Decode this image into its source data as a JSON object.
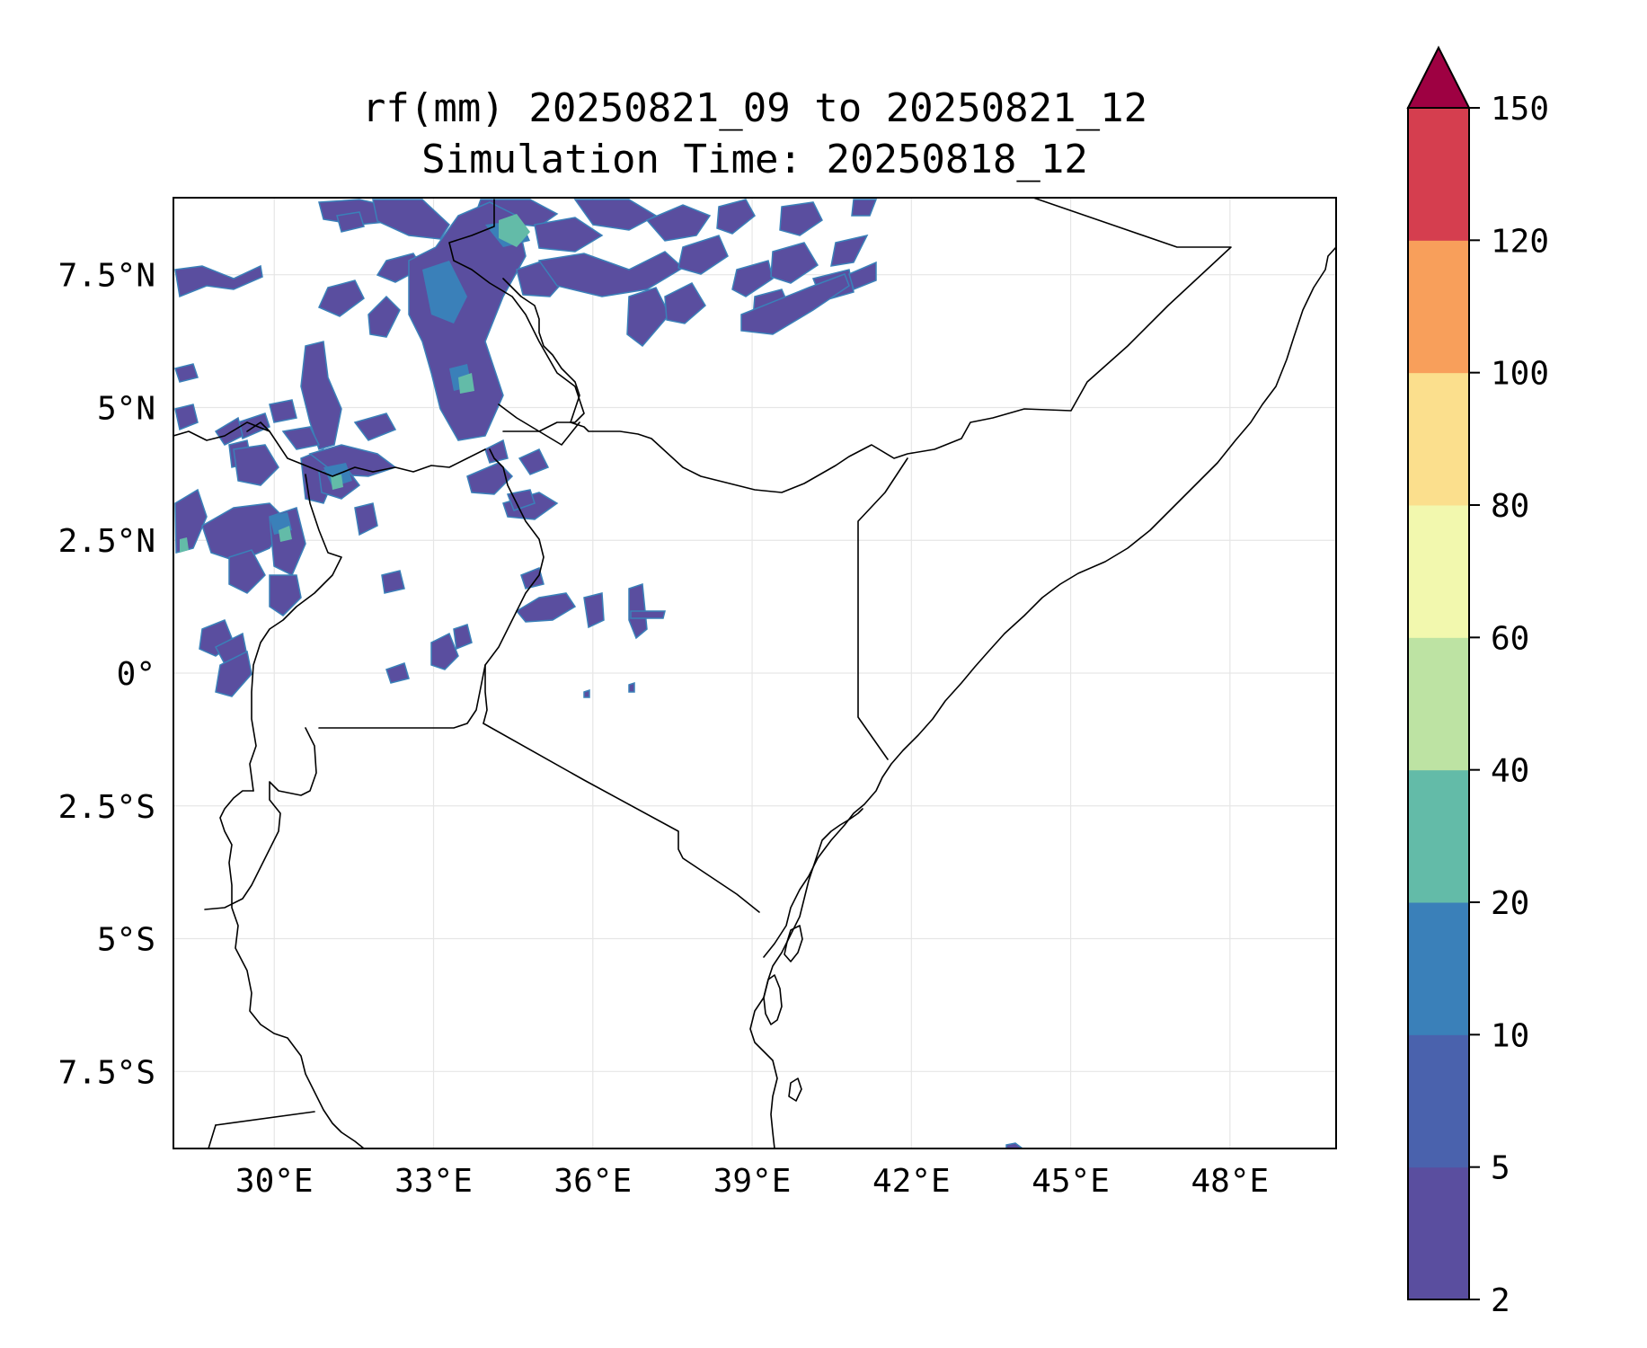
{
  "title": {
    "line1": "rf(mm) 20250821_09 to 20250821_12",
    "line2": "Simulation Time: 20250818_12"
  },
  "map": {
    "extent": {
      "lon_min": 28.1,
      "lon_max": 50.0,
      "lat_min": -8.95,
      "lat_max": 8.95
    },
    "lon_ticks": [
      {
        "value": 30,
        "label": "30°E"
      },
      {
        "value": 33,
        "label": "33°E"
      },
      {
        "value": 36,
        "label": "36°E"
      },
      {
        "value": 39,
        "label": "39°E"
      },
      {
        "value": 42,
        "label": "42°E"
      },
      {
        "value": 45,
        "label": "45°E"
      },
      {
        "value": 48,
        "label": "48°E"
      }
    ],
    "lat_ticks": [
      {
        "value": 7.5,
        "label": "7.5°N"
      },
      {
        "value": 5,
        "label": "5°N"
      },
      {
        "value": 2.5,
        "label": "2.5°N"
      },
      {
        "value": 0,
        "label": "0°"
      },
      {
        "value": -2.5,
        "label": "2.5°S"
      },
      {
        "value": -5,
        "label": "5°S"
      },
      {
        "value": -7.5,
        "label": "7.5°S"
      }
    ],
    "gridlines": true
  },
  "colorbar": {
    "levels": [
      2,
      5,
      10,
      20,
      40,
      60,
      80,
      100,
      120,
      150
    ],
    "tick_labels": [
      "2",
      "5",
      "10",
      "20",
      "40",
      "60",
      "80",
      "100",
      "120",
      "150"
    ],
    "colors": [
      "#5a4e9f",
      "#4a62ad",
      "#3a80b9",
      "#63bba8",
      "#bde3a3",
      "#f2f8ae",
      "#fbdf8d",
      "#f89f5b",
      "#d53e4f"
    ],
    "extend_color": "#9e0142"
  },
  "chart_data": {
    "type": "heatmap",
    "title": "rf(mm) 20250821_09 to 20250821_12",
    "subtitle": "Simulation Time: 20250818_12",
    "x_range": [
      28.1,
      50.0
    ],
    "y_range": [
      -8.95,
      8.95
    ],
    "color_levels": [
      2,
      5,
      10,
      20,
      40,
      60,
      80,
      100,
      120,
      150
    ],
    "rain_cells": [
      {
        "lon": 29.0,
        "lat": 7.4,
        "level": 5
      },
      {
        "lon": 31.9,
        "lat": 6.3,
        "level": 5
      },
      {
        "lon": 32.4,
        "lat": 8.5,
        "level": 5
      },
      {
        "lon": 33.6,
        "lat": 7.0,
        "level": 5
      },
      {
        "lon": 34.5,
        "lat": 8.2,
        "level": 20
      },
      {
        "lon": 34.8,
        "lat": 6.8,
        "level": 5
      },
      {
        "lon": 35.9,
        "lat": 8.4,
        "level": 5
      },
      {
        "lon": 37.2,
        "lat": 8.3,
        "level": 5
      },
      {
        "lon": 38.4,
        "lat": 7.3,
        "level": 5
      },
      {
        "lon": 39.5,
        "lat": 8.3,
        "level": 5
      },
      {
        "lon": 40.4,
        "lat": 7.3,
        "level": 5
      },
      {
        "lon": 33.8,
        "lat": 5.3,
        "level": 20
      },
      {
        "lon": 33.5,
        "lat": 6.0,
        "level": 10
      },
      {
        "lon": 30.9,
        "lat": 5.6,
        "level": 5
      },
      {
        "lon": 31.3,
        "lat": 3.6,
        "level": 20
      },
      {
        "lon": 32.0,
        "lat": 3.9,
        "level": 5
      },
      {
        "lon": 28.3,
        "lat": 2.8,
        "level": 5
      },
      {
        "lon": 29.8,
        "lat": 2.2,
        "level": 10
      },
      {
        "lon": 30.2,
        "lat": 2.5,
        "level": 20
      },
      {
        "lon": 29.2,
        "lat": 0.0,
        "level": 5
      },
      {
        "lon": 31.0,
        "lat": 2.9,
        "level": 5
      },
      {
        "lon": 35.2,
        "lat": 2.7,
        "level": 5
      },
      {
        "lon": 35.9,
        "lat": 1.2,
        "level": 5
      },
      {
        "lon": 36.8,
        "lat": 1.1,
        "level": 5
      },
      {
        "lon": 33.1,
        "lat": 0.4,
        "level": 5
      },
      {
        "lon": 43.8,
        "lat": -8.95,
        "level": 5
      }
    ]
  }
}
